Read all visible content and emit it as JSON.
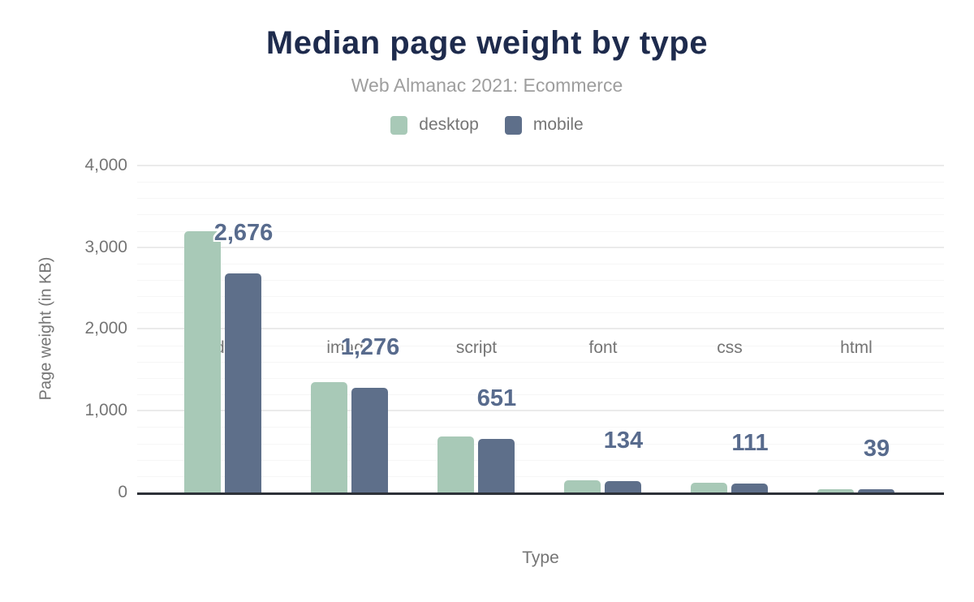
{
  "header": {
    "title": "Median page weight by type",
    "subtitle": "Web Almanac 2021: Ecommerce"
  },
  "legend": {
    "items": [
      {
        "label": "desktop",
        "color": "#a8c9b7"
      },
      {
        "label": "mobile",
        "color": "#5e6f8a"
      }
    ]
  },
  "colors": {
    "background": "#ffffff",
    "title": "#1e2b4d",
    "subtitle": "#9e9e9e",
    "axis_text": "#757575",
    "data_label": "#586b8d",
    "axis_line": "#2d3138",
    "grid_major": "#ebebeb",
    "grid_minor": "#f6f6f6"
  },
  "chart_data": {
    "type": "bar",
    "title": "Median page weight by type",
    "subtitle": "Web Almanac 2021: Ecommerce",
    "categories": [
      "video",
      "image",
      "script",
      "font",
      "css",
      "html"
    ],
    "series": [
      {
        "name": "desktop",
        "color": "#a8c9b7",
        "values": [
          3200,
          1350,
          680,
          145,
          115,
          42
        ]
      },
      {
        "name": "mobile",
        "color": "#5e6f8a",
        "values": [
          2676,
          1276,
          651,
          134,
          111,
          39
        ]
      }
    ],
    "data_labels": {
      "on_series": "mobile",
      "values": [
        "2,676",
        "1,276",
        "651",
        "134",
        "111",
        "39"
      ]
    },
    "xlabel": "Type",
    "ylabel": "Page weight (in KB)",
    "ylim": [
      0,
      4000
    ],
    "y_major_ticks": [
      0,
      1000,
      2000,
      3000,
      4000
    ],
    "y_tick_labels": [
      "0",
      "1,000",
      "2,000",
      "3,000",
      "4,000"
    ],
    "y_minor_step": 200,
    "grid": "horizontal",
    "legend_position": "top"
  }
}
